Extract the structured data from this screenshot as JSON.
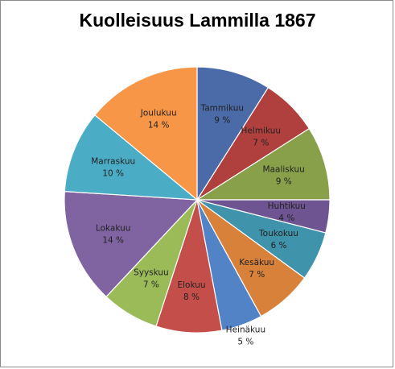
{
  "chart_data": {
    "type": "pie",
    "title": "Kuolleisuus Lammilla 1867",
    "slices": [
      {
        "label": "Tammikuu",
        "value": 9,
        "pct_label": "9 %",
        "color": "#4a6aa8"
      },
      {
        "label": "Helmikuu",
        "value": 7,
        "pct_label": "7 %",
        "color": "#b0403e"
      },
      {
        "label": "Maaliskuu",
        "value": 9,
        "pct_label": "9 %",
        "color": "#88a04a"
      },
      {
        "label": "Huhtikuu",
        "value": 4,
        "pct_label": "4 %",
        "color": "#6e5592"
      },
      {
        "label": "Toukokuu",
        "value": 6,
        "pct_label": "6 %",
        "color": "#3f93aa"
      },
      {
        "label": "Kesäkuu",
        "value": 7,
        "pct_label": "7 %",
        "color": "#d7813a"
      },
      {
        "label": "Heinäkuu",
        "value": 5,
        "pct_label": "5 %",
        "color": "#5383c7"
      },
      {
        "label": "Elokuu",
        "value": 8,
        "pct_label": "8 %",
        "color": "#c44e4a"
      },
      {
        "label": "Syyskuu",
        "value": 7,
        "pct_label": "7 %",
        "color": "#9bbb59"
      },
      {
        "label": "Lokakuu",
        "value": 14,
        "pct_label": "14 %",
        "color": "#8064a2"
      },
      {
        "label": "Marraskuu",
        "value": 10,
        "pct_label": "10 %",
        "color": "#4bacc6"
      },
      {
        "label": "Joulukuu",
        "value": 14,
        "pct_label": "14 %",
        "color": "#f79646"
      }
    ],
    "legend": "none"
  }
}
